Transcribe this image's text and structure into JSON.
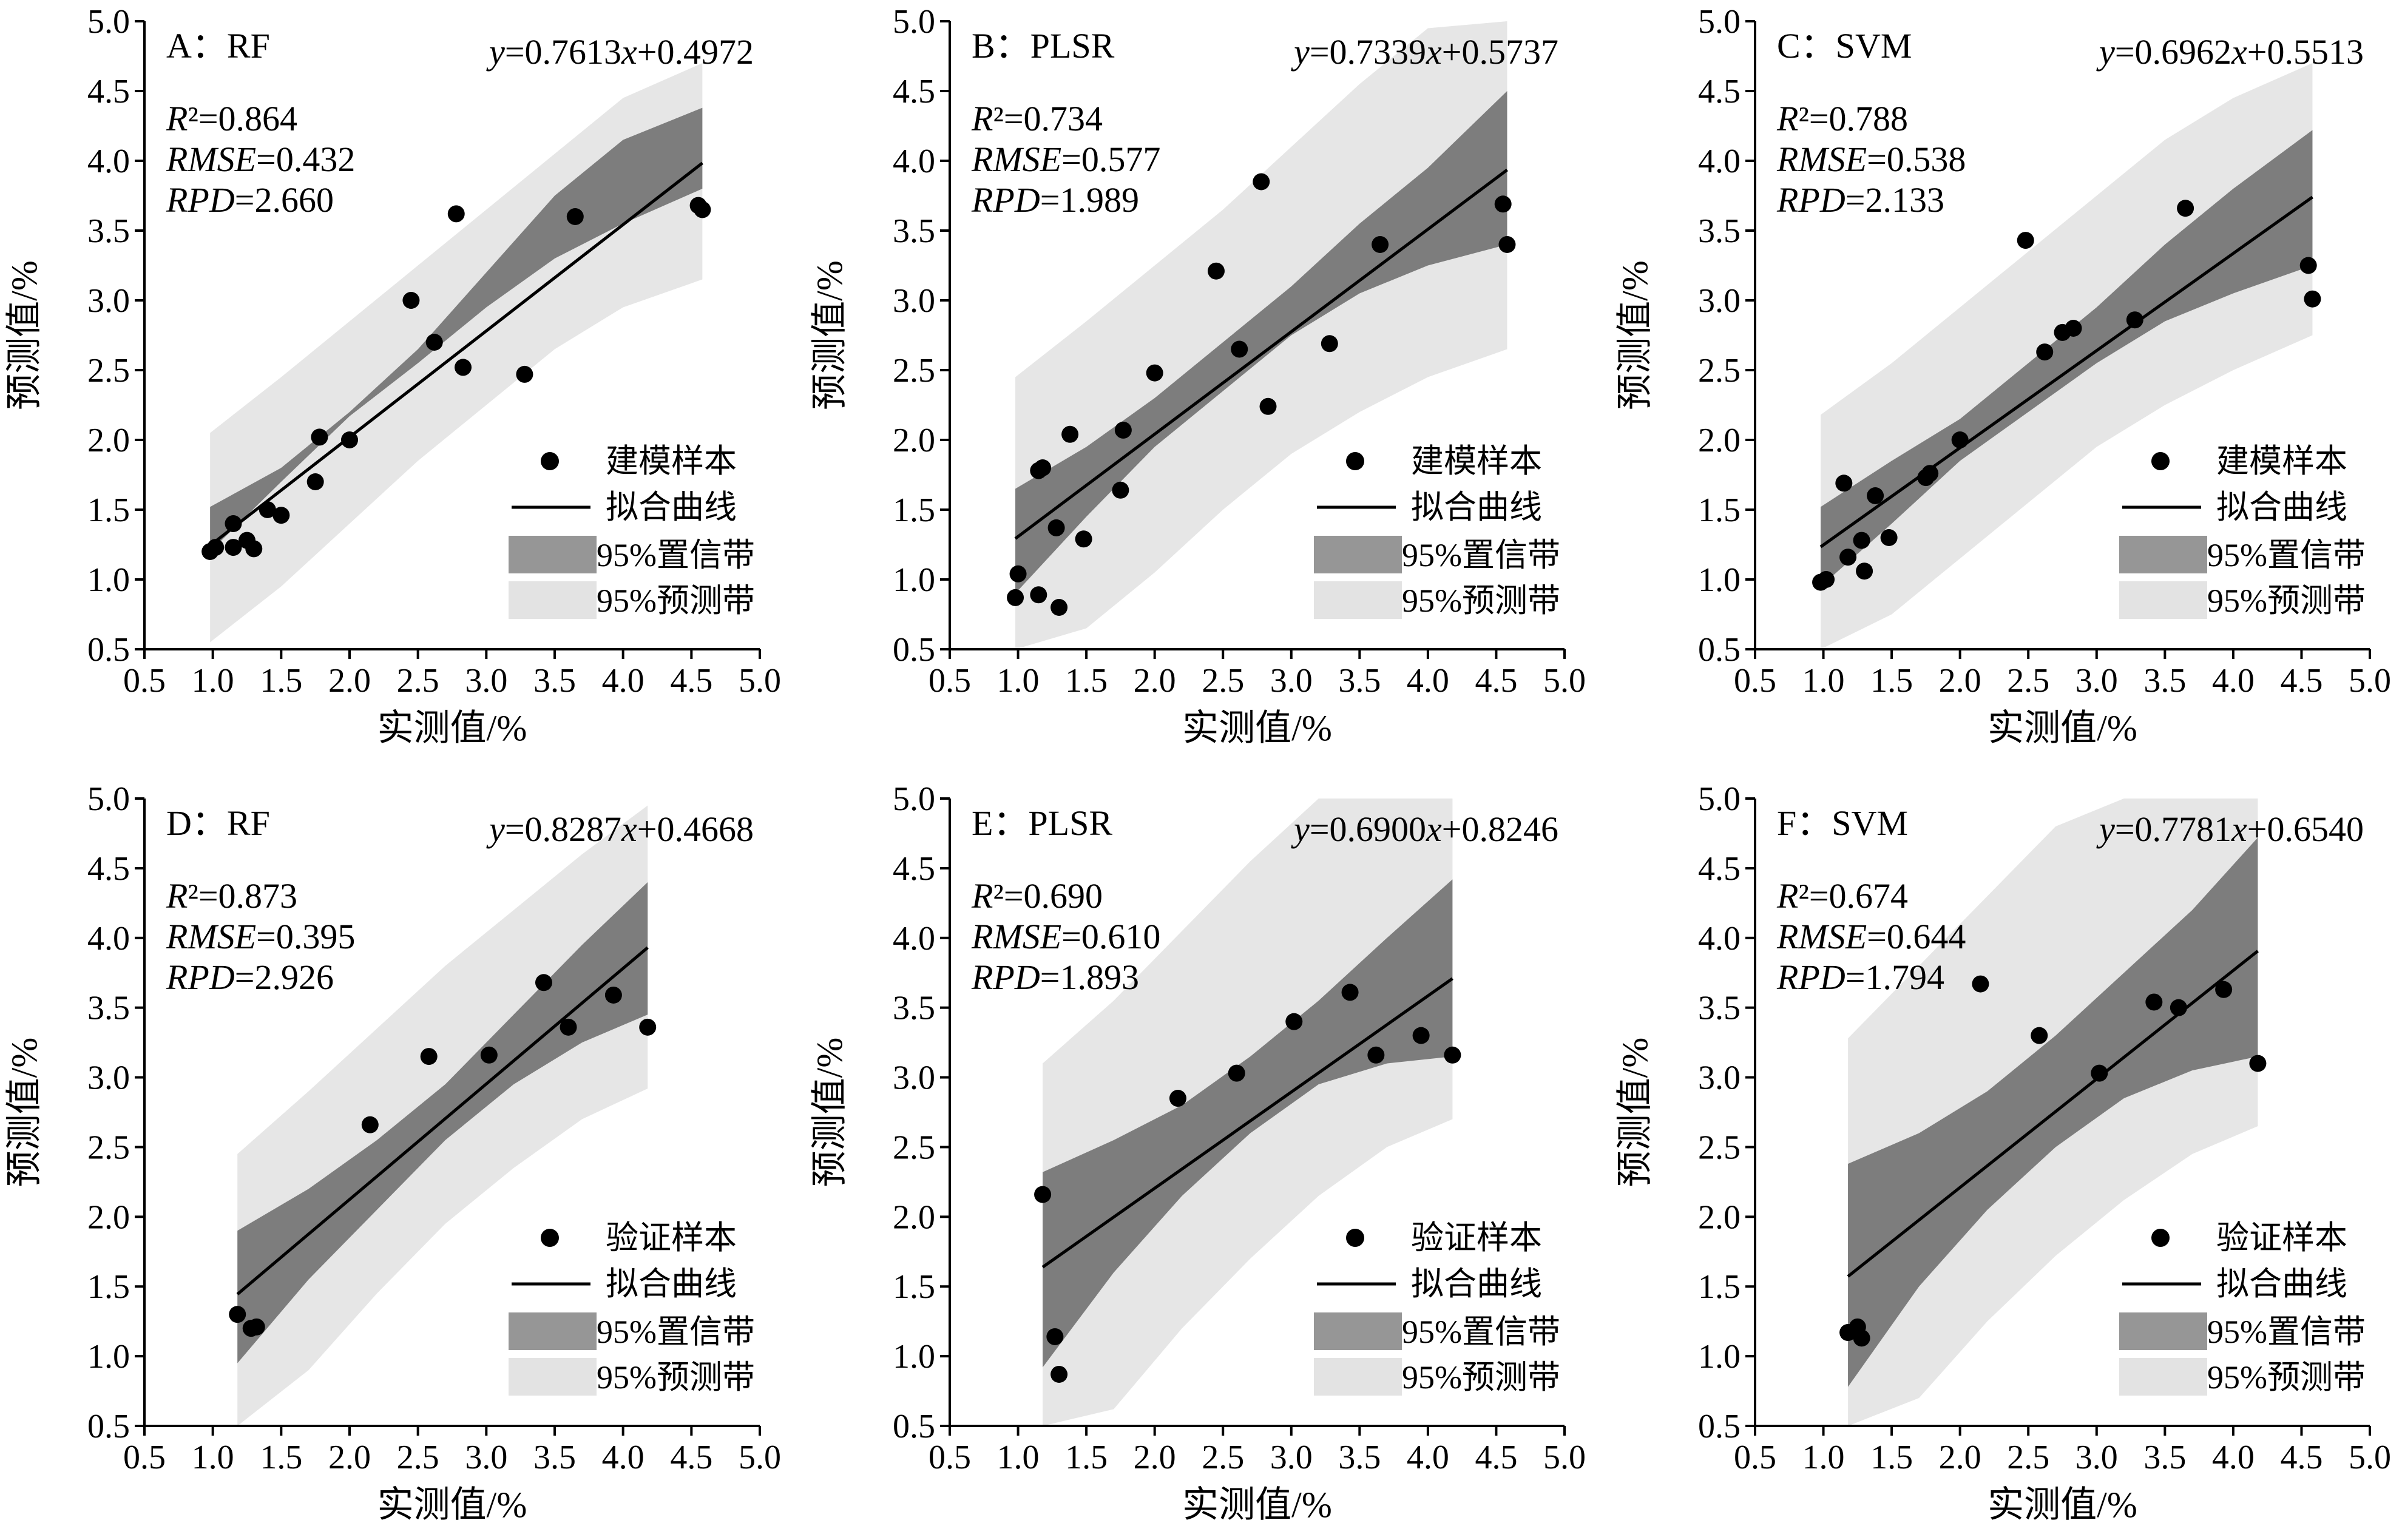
{
  "chart_data": [
    {
      "type": "scatter",
      "panel_label": "A：RF",
      "equation": "y=0.7613x+0.4972",
      "stats": {
        "R2": "R²=0.864",
        "RMSE": "RMSE=0.432",
        "RPD": "RPD=2.660"
      },
      "xlabel": "实测值/%",
      "ylabel": "预测值/%",
      "xlim": [
        0.5,
        5.0
      ],
      "ylim": [
        0.5,
        5.0
      ],
      "xticks": [
        "0.5",
        "1.0",
        "1.5",
        "2.0",
        "2.5",
        "3.0",
        "3.5",
        "4.0",
        "4.5",
        "5.0"
      ],
      "yticks": [
        "0.5",
        "1.0",
        "1.5",
        "2.0",
        "2.5",
        "3.0",
        "3.5",
        "4.0",
        "4.5",
        "5.0"
      ],
      "fit": {
        "slope": 0.7613,
        "intercept": 0.4972,
        "xmin": 0.98,
        "xmax": 4.58
      },
      "confidence_band": [
        [
          0.98,
          1.2,
          1.52
        ],
        [
          1.5,
          1.7,
          1.8
        ],
        [
          2.0,
          2.17,
          2.2
        ],
        [
          2.5,
          2.55,
          2.65
        ],
        [
          3.0,
          2.95,
          3.2
        ],
        [
          3.5,
          3.3,
          3.75
        ],
        [
          4.0,
          3.55,
          4.15
        ],
        [
          4.58,
          3.8,
          4.38
        ]
      ],
      "prediction_band": [
        [
          0.98,
          0.55,
          2.05
        ],
        [
          1.5,
          0.95,
          2.45
        ],
        [
          2.0,
          1.4,
          2.85
        ],
        [
          2.5,
          1.85,
          3.25
        ],
        [
          3.0,
          2.25,
          3.65
        ],
        [
          3.5,
          2.65,
          4.05
        ],
        [
          4.0,
          2.95,
          4.45
        ],
        [
          4.58,
          3.15,
          4.7
        ]
      ],
      "points": [
        [
          0.98,
          1.2
        ],
        [
          1.02,
          1.23
        ],
        [
          1.15,
          1.4
        ],
        [
          1.15,
          1.23
        ],
        [
          1.25,
          1.28
        ],
        [
          1.3,
          1.22
        ],
        [
          1.4,
          1.5
        ],
        [
          1.5,
          1.46
        ],
        [
          1.75,
          1.7
        ],
        [
          1.78,
          2.02
        ],
        [
          2.0,
          2.0
        ],
        [
          2.45,
          3.0
        ],
        [
          2.62,
          2.7
        ],
        [
          2.78,
          3.62
        ],
        [
          2.83,
          2.52
        ],
        [
          3.28,
          2.47
        ],
        [
          3.65,
          3.6
        ],
        [
          4.55,
          3.68
        ],
        [
          4.58,
          3.65
        ]
      ],
      "legend": [
        "建模样本",
        "拟合曲线",
        "95%置信带",
        "95%预测带"
      ]
    },
    {
      "type": "scatter",
      "panel_label": "B：PLSR",
      "equation": "y=0.7339x+0.5737",
      "stats": {
        "R2": "R²=0.734",
        "RMSE": "RMSE=0.577",
        "RPD": "RPD=1.989"
      },
      "xlabel": "实测值/%",
      "ylabel": "预测值/%",
      "xlim": [
        0.5,
        5.0
      ],
      "ylim": [
        0.5,
        5.0
      ],
      "xticks": [
        "0.5",
        "1.0",
        "1.5",
        "2.0",
        "2.5",
        "3.0",
        "3.5",
        "4.0",
        "4.5",
        "5.0"
      ],
      "yticks": [
        "0.5",
        "1.0",
        "1.5",
        "2.0",
        "2.5",
        "3.0",
        "3.5",
        "4.0",
        "4.5",
        "5.0"
      ],
      "fit": {
        "slope": 0.7339,
        "intercept": 0.5737,
        "xmin": 0.98,
        "xmax": 4.58
      },
      "confidence_band": [
        [
          0.98,
          0.9,
          1.65
        ],
        [
          1.5,
          1.45,
          1.95
        ],
        [
          2.0,
          1.95,
          2.3
        ],
        [
          2.5,
          2.35,
          2.7
        ],
        [
          3.0,
          2.75,
          3.1
        ],
        [
          3.5,
          3.05,
          3.55
        ],
        [
          4.0,
          3.25,
          3.95
        ],
        [
          4.58,
          3.4,
          4.5
        ]
      ],
      "prediction_band": [
        [
          0.98,
          0.5,
          2.45
        ],
        [
          1.5,
          0.65,
          2.85
        ],
        [
          2.0,
          1.05,
          3.25
        ],
        [
          2.5,
          1.5,
          3.65
        ],
        [
          3.0,
          1.9,
          4.1
        ],
        [
          3.5,
          2.2,
          4.55
        ],
        [
          4.0,
          2.45,
          4.95
        ],
        [
          4.58,
          2.65,
          5.0
        ]
      ],
      "points": [
        [
          0.98,
          0.87
        ],
        [
          1.0,
          1.04
        ],
        [
          1.15,
          1.78
        ],
        [
          1.18,
          1.8
        ],
        [
          1.15,
          0.89
        ],
        [
          1.28,
          1.37
        ],
        [
          1.3,
          0.8
        ],
        [
          1.38,
          2.04
        ],
        [
          1.48,
          1.29
        ],
        [
          1.75,
          1.64
        ],
        [
          1.77,
          2.07
        ],
        [
          2.0,
          2.48
        ],
        [
          2.45,
          3.21
        ],
        [
          2.62,
          2.65
        ],
        [
          2.78,
          3.85
        ],
        [
          2.83,
          2.24
        ],
        [
          3.28,
          2.69
        ],
        [
          3.65,
          3.4
        ],
        [
          4.55,
          3.69
        ],
        [
          4.58,
          3.4
        ]
      ],
      "legend": [
        "建模样本",
        "拟合曲线",
        "95%置信带",
        "95%预测带"
      ]
    },
    {
      "type": "scatter",
      "panel_label": "C：SVM",
      "equation": "y=0.6962x+0.5513",
      "stats": {
        "R2": "R²=0.788",
        "RMSE": "RMSE=0.538",
        "RPD": "RPD=2.133"
      },
      "xlabel": "实测值/%",
      "ylabel": "预测值/%",
      "xlim": [
        0.5,
        5.0
      ],
      "ylim": [
        0.5,
        5.0
      ],
      "xticks": [
        "0.5",
        "1.0",
        "1.5",
        "2.0",
        "2.5",
        "3.0",
        "3.5",
        "4.0",
        "4.5",
        "5.0"
      ],
      "yticks": [
        "0.5",
        "1.0",
        "1.5",
        "2.0",
        "2.5",
        "3.0",
        "3.5",
        "4.0",
        "4.5",
        "5.0"
      ],
      "fit": {
        "slope": 0.6962,
        "intercept": 0.5513,
        "xmin": 0.98,
        "xmax": 4.58
      },
      "confidence_band": [
        [
          0.98,
          0.95,
          1.52
        ],
        [
          1.5,
          1.4,
          1.85
        ],
        [
          2.0,
          1.85,
          2.15
        ],
        [
          2.5,
          2.2,
          2.55
        ],
        [
          3.0,
          2.55,
          2.95
        ],
        [
          3.5,
          2.85,
          3.4
        ],
        [
          4.0,
          3.05,
          3.8
        ],
        [
          4.58,
          3.25,
          4.22
        ]
      ],
      "prediction_band": [
        [
          0.98,
          0.5,
          2.18
        ],
        [
          1.5,
          0.75,
          2.55
        ],
        [
          2.0,
          1.15,
          2.95
        ],
        [
          2.5,
          1.55,
          3.35
        ],
        [
          3.0,
          1.95,
          3.75
        ],
        [
          3.5,
          2.25,
          4.15
        ],
        [
          4.0,
          2.5,
          4.45
        ],
        [
          4.58,
          2.75,
          4.7
        ]
      ],
      "points": [
        [
          0.98,
          0.98
        ],
        [
          1.02,
          1.0
        ],
        [
          1.15,
          1.69
        ],
        [
          1.18,
          1.16
        ],
        [
          1.28,
          1.28
        ],
        [
          1.3,
          1.06
        ],
        [
          1.38,
          1.6
        ],
        [
          1.48,
          1.3
        ],
        [
          1.75,
          1.73
        ],
        [
          1.78,
          1.76
        ],
        [
          2.0,
          2.0
        ],
        [
          2.48,
          3.43
        ],
        [
          2.62,
          2.63
        ],
        [
          2.75,
          2.77
        ],
        [
          2.83,
          2.8
        ],
        [
          3.28,
          2.86
        ],
        [
          3.65,
          3.66
        ],
        [
          4.55,
          3.25
        ],
        [
          4.58,
          3.01
        ]
      ],
      "legend": [
        "建模样本",
        "拟合曲线",
        "95%置信带",
        "95%预测带"
      ]
    },
    {
      "type": "scatter",
      "panel_label": "D：RF",
      "equation": "y=0.8287x+0.4668",
      "stats": {
        "R2": "R²=0.873",
        "RMSE": "RMSE=0.395",
        "RPD": "RPD=2.926"
      },
      "xlabel": "实测值/%",
      "ylabel": "预测值/%",
      "xlim": [
        0.5,
        5.0
      ],
      "ylim": [
        0.5,
        5.0
      ],
      "xticks": [
        "0.5",
        "1.0",
        "1.5",
        "2.0",
        "2.5",
        "3.0",
        "3.5",
        "4.0",
        "4.5",
        "5.0"
      ],
      "yticks": [
        "0.5",
        "1.0",
        "1.5",
        "2.0",
        "2.5",
        "3.0",
        "3.5",
        "4.0",
        "4.5",
        "5.0"
      ],
      "fit": {
        "slope": 0.8287,
        "intercept": 0.4668,
        "xmin": 1.18,
        "xmax": 4.18
      },
      "confidence_band": [
        [
          1.18,
          0.95,
          1.9
        ],
        [
          1.7,
          1.55,
          2.2
        ],
        [
          2.2,
          2.05,
          2.55
        ],
        [
          2.7,
          2.55,
          2.95
        ],
        [
          3.2,
          2.95,
          3.45
        ],
        [
          3.7,
          3.25,
          3.95
        ],
        [
          4.18,
          3.45,
          4.4
        ]
      ],
      "prediction_band": [
        [
          1.18,
          0.5,
          2.45
        ],
        [
          1.7,
          0.9,
          2.9
        ],
        [
          2.2,
          1.45,
          3.35
        ],
        [
          2.7,
          1.95,
          3.8
        ],
        [
          3.2,
          2.35,
          4.2
        ],
        [
          3.7,
          2.7,
          4.6
        ],
        [
          4.18,
          2.92,
          4.95
        ]
      ],
      "points": [
        [
          1.18,
          1.3
        ],
        [
          1.28,
          1.2
        ],
        [
          1.32,
          1.21
        ],
        [
          2.15,
          2.66
        ],
        [
          2.58,
          3.15
        ],
        [
          3.02,
          3.16
        ],
        [
          3.42,
          3.68
        ],
        [
          3.6,
          3.36
        ],
        [
          3.93,
          3.59
        ],
        [
          4.18,
          3.36
        ]
      ],
      "legend": [
        "验证样本",
        "拟合曲线",
        "95%置信带",
        "95%预测带"
      ]
    },
    {
      "type": "scatter",
      "panel_label": "E：PLSR",
      "equation": "y=0.6900x+0.8246",
      "stats": {
        "R2": "R²=0.690",
        "RMSE": "RMSE=0.610",
        "RPD": "RPD=1.893"
      },
      "xlabel": "实测值/%",
      "ylabel": "预测值/%",
      "xlim": [
        0.5,
        5.0
      ],
      "ylim": [
        0.5,
        5.0
      ],
      "xticks": [
        "0.5",
        "1.0",
        "1.5",
        "2.0",
        "2.5",
        "3.0",
        "3.5",
        "4.0",
        "4.5",
        "5.0"
      ],
      "yticks": [
        "0.5",
        "1.0",
        "1.5",
        "2.0",
        "2.5",
        "3.0",
        "3.5",
        "4.0",
        "4.5",
        "5.0"
      ],
      "fit": {
        "slope": 0.69,
        "intercept": 0.8246,
        "xmin": 1.18,
        "xmax": 4.18
      },
      "confidence_band": [
        [
          1.18,
          0.92,
          2.32
        ],
        [
          1.7,
          1.6,
          2.55
        ],
        [
          2.2,
          2.15,
          2.8
        ],
        [
          2.7,
          2.6,
          3.15
        ],
        [
          3.2,
          2.95,
          3.55
        ],
        [
          3.7,
          3.1,
          4.0
        ],
        [
          4.18,
          3.15,
          4.42
        ]
      ],
      "prediction_band": [
        [
          1.18,
          0.5,
          3.1
        ],
        [
          1.7,
          0.62,
          3.55
        ],
        [
          2.2,
          1.2,
          4.05
        ],
        [
          2.7,
          1.7,
          4.55
        ],
        [
          3.2,
          2.15,
          5.0
        ],
        [
          3.7,
          2.5,
          5.0
        ],
        [
          4.18,
          2.7,
          5.0
        ]
      ],
      "points": [
        [
          1.18,
          2.16
        ],
        [
          1.27,
          1.14
        ],
        [
          1.3,
          0.87
        ],
        [
          2.17,
          2.85
        ],
        [
          2.6,
          3.03
        ],
        [
          3.02,
          3.4
        ],
        [
          3.43,
          3.61
        ],
        [
          3.62,
          3.16
        ],
        [
          3.95,
          3.3
        ],
        [
          4.18,
          3.16
        ]
      ],
      "legend": [
        "验证样本",
        "拟合曲线",
        "95%置信带",
        "95%预测带"
      ]
    },
    {
      "type": "scatter",
      "panel_label": "F：SVM",
      "equation": "y=0.7781x+0.6540",
      "stats": {
        "R2": "R²=0.674",
        "RMSE": "RMSE=0.644",
        "RPD": "RPD=1.794"
      },
      "xlabel": "实测值/%",
      "ylabel": "预测值/%",
      "xlim": [
        0.5,
        5.0
      ],
      "ylim": [
        0.5,
        5.0
      ],
      "xticks": [
        "0.5",
        "1.0",
        "1.5",
        "2.0",
        "2.5",
        "3.0",
        "3.5",
        "4.0",
        "4.5",
        "5.0"
      ],
      "yticks": [
        "0.5",
        "1.0",
        "1.5",
        "2.0",
        "2.5",
        "3.0",
        "3.5",
        "4.0",
        "4.5",
        "5.0"
      ],
      "fit": {
        "slope": 0.7781,
        "intercept": 0.654,
        "xmin": 1.18,
        "xmax": 4.18
      },
      "confidence_band": [
        [
          1.18,
          0.78,
          2.38
        ],
        [
          1.7,
          1.5,
          2.6
        ],
        [
          2.2,
          2.05,
          2.9
        ],
        [
          2.7,
          2.5,
          3.3
        ],
        [
          3.2,
          2.85,
          3.75
        ],
        [
          3.7,
          3.05,
          4.2
        ],
        [
          4.18,
          3.15,
          4.72
        ]
      ],
      "prediction_band": [
        [
          1.18,
          0.5,
          3.28
        ],
        [
          1.7,
          0.7,
          3.8
        ],
        [
          2.2,
          1.25,
          4.3
        ],
        [
          2.7,
          1.72,
          4.8
        ],
        [
          3.2,
          2.12,
          5.0
        ],
        [
          3.7,
          2.45,
          5.0
        ],
        [
          4.18,
          2.65,
          5.0
        ]
      ],
      "points": [
        [
          1.18,
          1.17
        ],
        [
          1.25,
          1.21
        ],
        [
          1.28,
          1.13
        ],
        [
          2.15,
          3.67
        ],
        [
          2.58,
          3.3
        ],
        [
          3.02,
          3.03
        ],
        [
          3.42,
          3.54
        ],
        [
          3.6,
          3.5
        ],
        [
          3.93,
          3.63
        ],
        [
          4.18,
          3.1
        ]
      ],
      "legend": [
        "验证样本",
        "拟合曲线",
        "95%置信带",
        "95%预测带"
      ]
    }
  ],
  "colors": {
    "prediction_band": "#e6e6e6",
    "confidence_band": "#7d7d7d",
    "legend_confidence": "#969696",
    "legend_prediction": "#e3e3e3",
    "fit_line": "#000000",
    "points": "#000000"
  }
}
